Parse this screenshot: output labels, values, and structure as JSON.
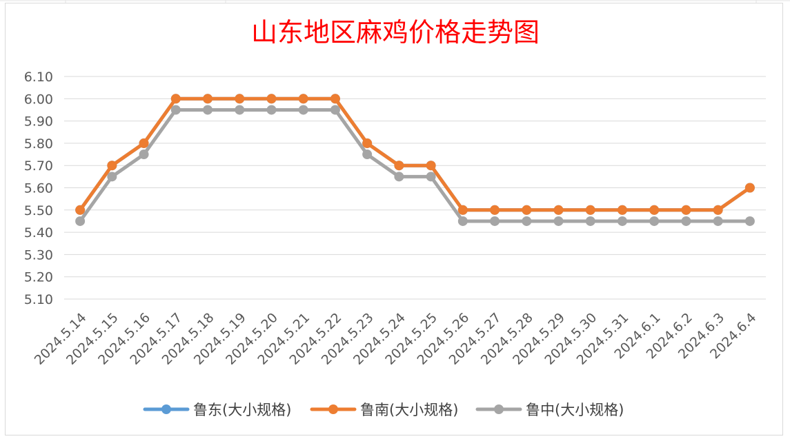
{
  "chart_data": {
    "type": "line",
    "title": "山东地区麻鸡价格走势图",
    "xlabel": "",
    "ylabel": "",
    "categories": [
      "2024.5.14",
      "2024.5.15",
      "2024.5.16",
      "2024.5.17",
      "2024.5.18",
      "2024.5.19",
      "2024.5.20",
      "2024.5.21",
      "2024.5.22",
      "2024.5.23",
      "2024.5.24",
      "2024.5.25",
      "2024.5.26",
      "2024.5.27",
      "2024.5.28",
      "2024.5.29",
      "2024.5.30",
      "2024.5.31",
      "2024.6.1",
      "2024.6.2",
      "2024.6.3",
      "2024.6.4"
    ],
    "ylim": [
      5.1,
      6.1
    ],
    "yticks": [
      "6.10",
      "6.00",
      "5.90",
      "5.80",
      "5.70",
      "5.60",
      "5.50",
      "5.40",
      "5.30",
      "5.20",
      "5.10"
    ],
    "grid": true,
    "legend_position": "bottom",
    "series": [
      {
        "name": "鲁东(大小规格)",
        "color": "#5b9bd5",
        "values": [
          5.5,
          5.7,
          5.8,
          6.0,
          6.0,
          6.0,
          6.0,
          6.0,
          6.0,
          5.8,
          5.7,
          5.7,
          5.5,
          5.5,
          5.5,
          5.5,
          5.5,
          5.5,
          5.5,
          5.5,
          5.5,
          5.6
        ]
      },
      {
        "name": "鲁南(大小规格)",
        "color": "#ed7d31",
        "values": [
          5.5,
          5.7,
          5.8,
          6.0,
          6.0,
          6.0,
          6.0,
          6.0,
          6.0,
          5.8,
          5.7,
          5.7,
          5.5,
          5.5,
          5.5,
          5.5,
          5.5,
          5.5,
          5.5,
          5.5,
          5.5,
          5.6
        ]
      },
      {
        "name": "鲁中(大小规格)",
        "color": "#a5a5a5",
        "values": [
          5.45,
          5.65,
          5.75,
          5.95,
          5.95,
          5.95,
          5.95,
          5.95,
          5.95,
          5.75,
          5.65,
          5.65,
          5.45,
          5.45,
          5.45,
          5.45,
          5.45,
          5.45,
          5.45,
          5.45,
          5.45,
          5.45
        ]
      }
    ]
  }
}
